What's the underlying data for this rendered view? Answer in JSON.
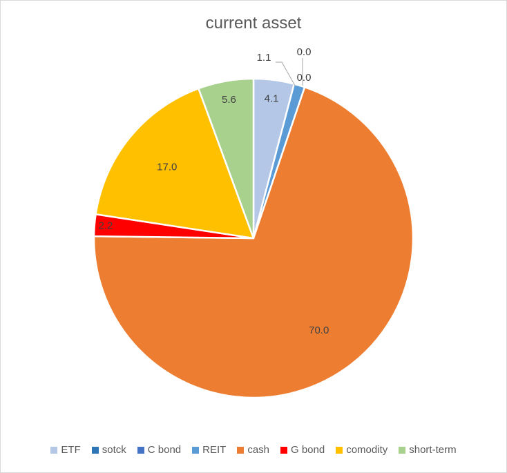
{
  "chart_data": {
    "type": "pie",
    "title": "current asset",
    "categories": [
      "ETF",
      "sotck",
      "C bond",
      "REIT",
      "cash",
      "G bond",
      "comodity",
      "short-term"
    ],
    "values": [
      4.1,
      0.0,
      0.0,
      1.1,
      70.0,
      2.2,
      17.0,
      5.6
    ],
    "data_labels": [
      "4.1",
      "0.0",
      "0.0",
      "1.1",
      "70.0",
      "2.2",
      "17.0",
      "5.6"
    ],
    "colors": [
      "#b4c7e7",
      "#2e75b6",
      "#4472c4",
      "#5b9bd5",
      "#ed7d31",
      "#ff0000",
      "#ffc000",
      "#a9d18e"
    ],
    "legend_position": "bottom"
  }
}
